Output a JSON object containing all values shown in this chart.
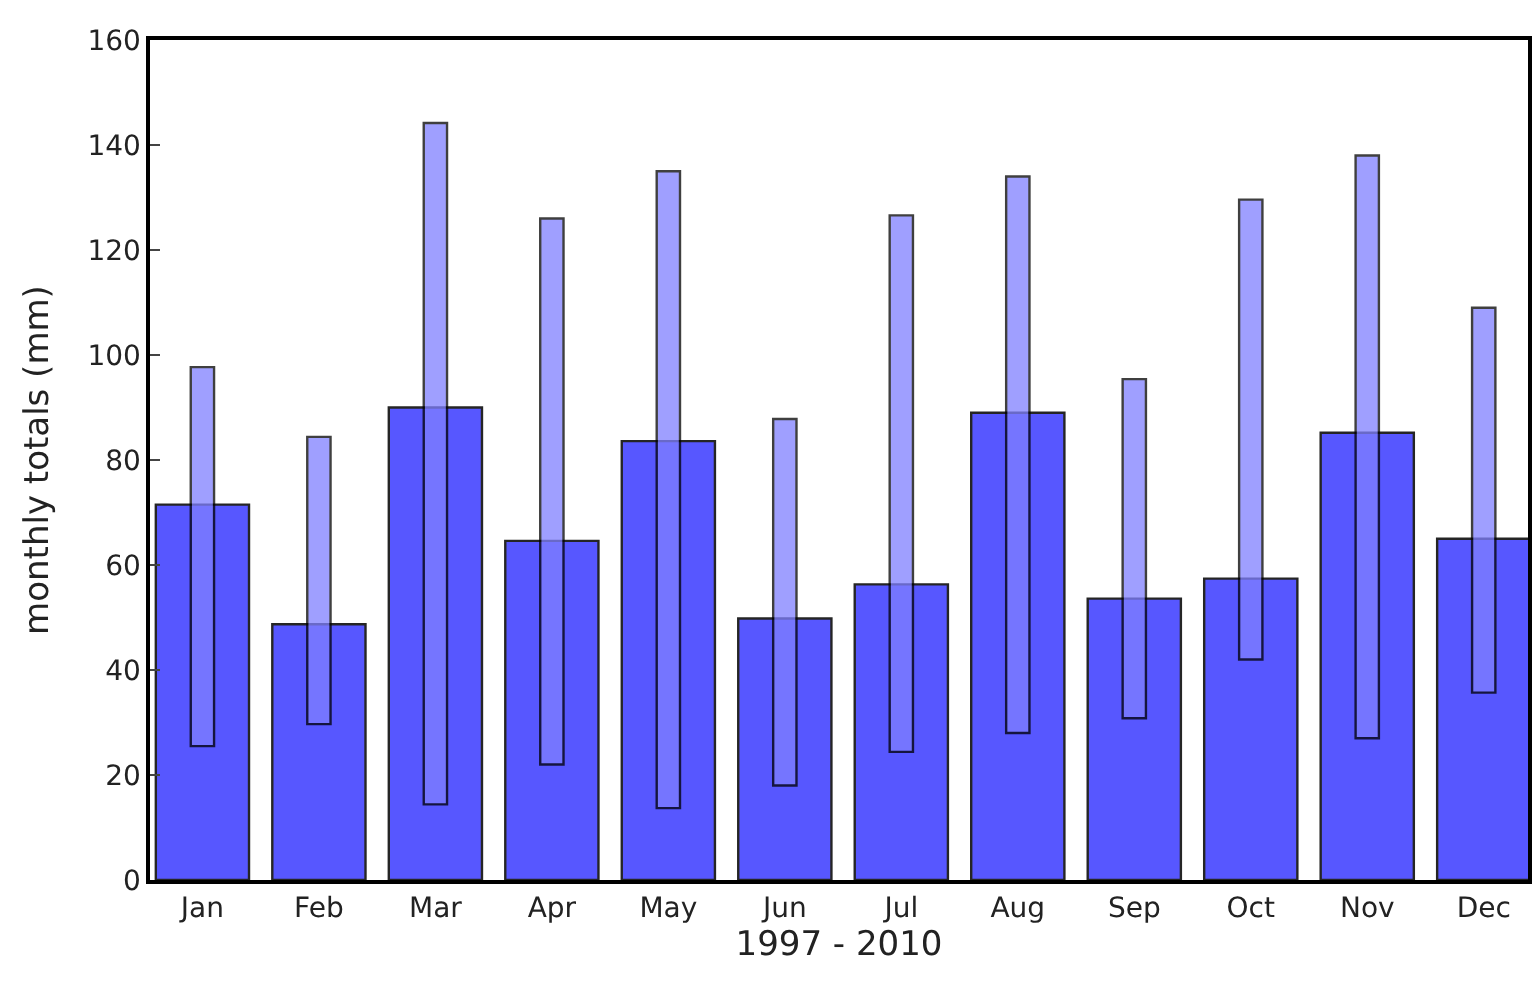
{
  "chart_data": {
    "type": "bar",
    "xlabel": "1997 - 2010",
    "ylabel": "monthly totals (mm)",
    "categories": [
      "Jan",
      "Feb",
      "Mar",
      "Apr",
      "May",
      "Jun",
      "Jul",
      "Aug",
      "Sep",
      "Oct",
      "Nov",
      "Dec"
    ],
    "series": [
      {
        "color": "#3a3aff",
        "values": [
          71.5,
          48.7,
          90,
          64.6,
          83.6,
          49.8,
          56.3,
          89,
          53.6,
          57.4,
          85.2,
          65
        ]
      },
      {
        "color": "#8080ff",
        "base": [
          25.5,
          29.7,
          14.4,
          22,
          13.7,
          18,
          24.4,
          28,
          30.8,
          42,
          27,
          35.7
        ],
        "values": [
          72.2,
          54.7,
          129.8,
          104,
          121.3,
          69.8,
          102.2,
          106,
          64.6,
          87.6,
          111,
          73.3
        ]
      }
    ],
    "ylim": [
      0,
      160
    ],
    "yticks": [
      0,
      20,
      40,
      60,
      80,
      100,
      120,
      140,
      160
    ]
  }
}
